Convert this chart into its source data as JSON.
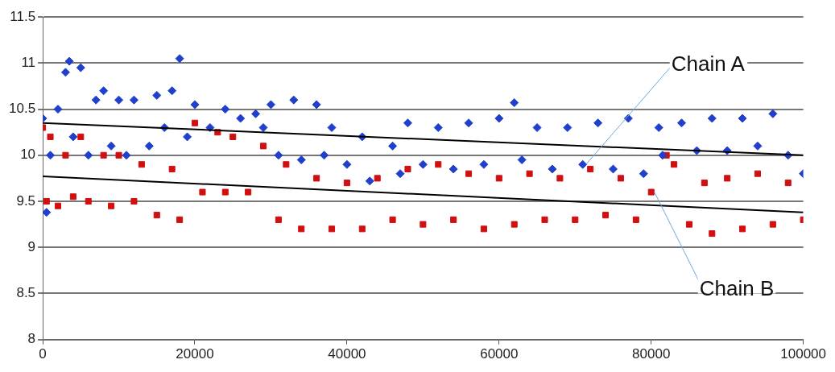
{
  "chart_data": {
    "type": "scatter",
    "xlim": [
      0,
      100000
    ],
    "xticks": [
      0,
      20000,
      40000,
      60000,
      80000,
      100000
    ],
    "ylim": [
      8,
      11.5
    ],
    "yticks": [
      8,
      8.5,
      9,
      9.5,
      10,
      10.5,
      11,
      11.5
    ],
    "grid": "y",
    "legend": false,
    "series": [
      {
        "name": "Chain A",
        "color": "#1f3fcc",
        "marker": "diamond",
        "x": [
          0,
          500,
          1000,
          2000,
          3000,
          3500,
          4000,
          5000,
          6000,
          7000,
          8000,
          9000,
          10000,
          11000,
          12000,
          14000,
          15000,
          16000,
          17000,
          18000,
          19000,
          20000,
          22000,
          24000,
          26000,
          28000,
          29000,
          30000,
          31000,
          33000,
          34000,
          36000,
          37000,
          38000,
          40000,
          42000,
          43000,
          46000,
          47000,
          48000,
          50000,
          52000,
          54000,
          56000,
          58000,
          60000,
          62000,
          63000,
          65000,
          67000,
          69000,
          71000,
          73000,
          75000,
          77000,
          79000,
          81000,
          81500,
          84000,
          86000,
          88000,
          90000,
          92000,
          94000,
          96000,
          98000,
          100000
        ],
        "values": [
          10.4,
          9.38,
          10.0,
          10.5,
          10.9,
          11.02,
          10.2,
          10.95,
          10.0,
          10.6,
          10.7,
          10.1,
          10.6,
          10.0,
          10.6,
          10.1,
          10.65,
          10.3,
          10.7,
          11.05,
          10.2,
          10.55,
          10.3,
          10.5,
          10.4,
          10.45,
          10.3,
          10.55,
          10.0,
          10.6,
          9.95,
          10.55,
          10.0,
          10.3,
          9.9,
          10.2,
          9.72,
          10.1,
          9.8,
          10.35,
          9.9,
          10.3,
          9.85,
          10.35,
          9.9,
          10.4,
          10.57,
          9.95,
          10.3,
          9.85,
          10.3,
          9.9,
          10.35,
          9.85,
          10.4,
          9.8,
          10.3,
          10.0,
          10.35,
          10.05,
          10.4,
          10.05,
          10.4,
          10.1,
          10.45,
          10.0,
          9.8
        ]
      },
      {
        "name": "Chain B",
        "color": "#d01010",
        "marker": "square",
        "x": [
          0,
          500,
          1000,
          2000,
          3000,
          4000,
          5000,
          6000,
          8000,
          9000,
          10000,
          12000,
          13000,
          15000,
          17000,
          18000,
          20000,
          21000,
          23000,
          24000,
          25000,
          27000,
          29000,
          31000,
          32000,
          34000,
          36000,
          38000,
          40000,
          42000,
          44000,
          46000,
          48000,
          50000,
          52000,
          54000,
          56000,
          58000,
          60000,
          62000,
          64000,
          66000,
          68000,
          70000,
          72000,
          74000,
          76000,
          78000,
          80000,
          82000,
          83000,
          85000,
          87000,
          88000,
          90000,
          92000,
          94000,
          96000,
          98000,
          100000
        ],
        "values": [
          10.3,
          9.5,
          10.2,
          9.45,
          10.0,
          9.55,
          10.2,
          9.5,
          10.0,
          9.45,
          10.0,
          9.5,
          9.9,
          9.35,
          9.85,
          9.3,
          10.35,
          9.6,
          10.25,
          9.6,
          10.2,
          9.6,
          10.1,
          9.3,
          9.9,
          9.2,
          9.75,
          9.2,
          9.7,
          9.2,
          9.75,
          9.3,
          9.85,
          9.25,
          9.9,
          9.3,
          9.8,
          9.2,
          9.75,
          9.25,
          9.8,
          9.3,
          9.75,
          9.3,
          9.85,
          9.35,
          9.75,
          9.3,
          9.6,
          10.0,
          9.9,
          9.25,
          9.7,
          9.15,
          9.75,
          9.2,
          9.8,
          9.25,
          9.7,
          9.3
        ]
      },
      {
        "type": "line",
        "color": "#000000",
        "marker": "none",
        "x": [
          0,
          100000
        ],
        "values": [
          10.35,
          10.0
        ]
      },
      {
        "type": "line",
        "color": "#000000",
        "marker": "none",
        "x": [
          0,
          100000
        ],
        "values": [
          9.77,
          9.38
        ]
      }
    ]
  }
}
